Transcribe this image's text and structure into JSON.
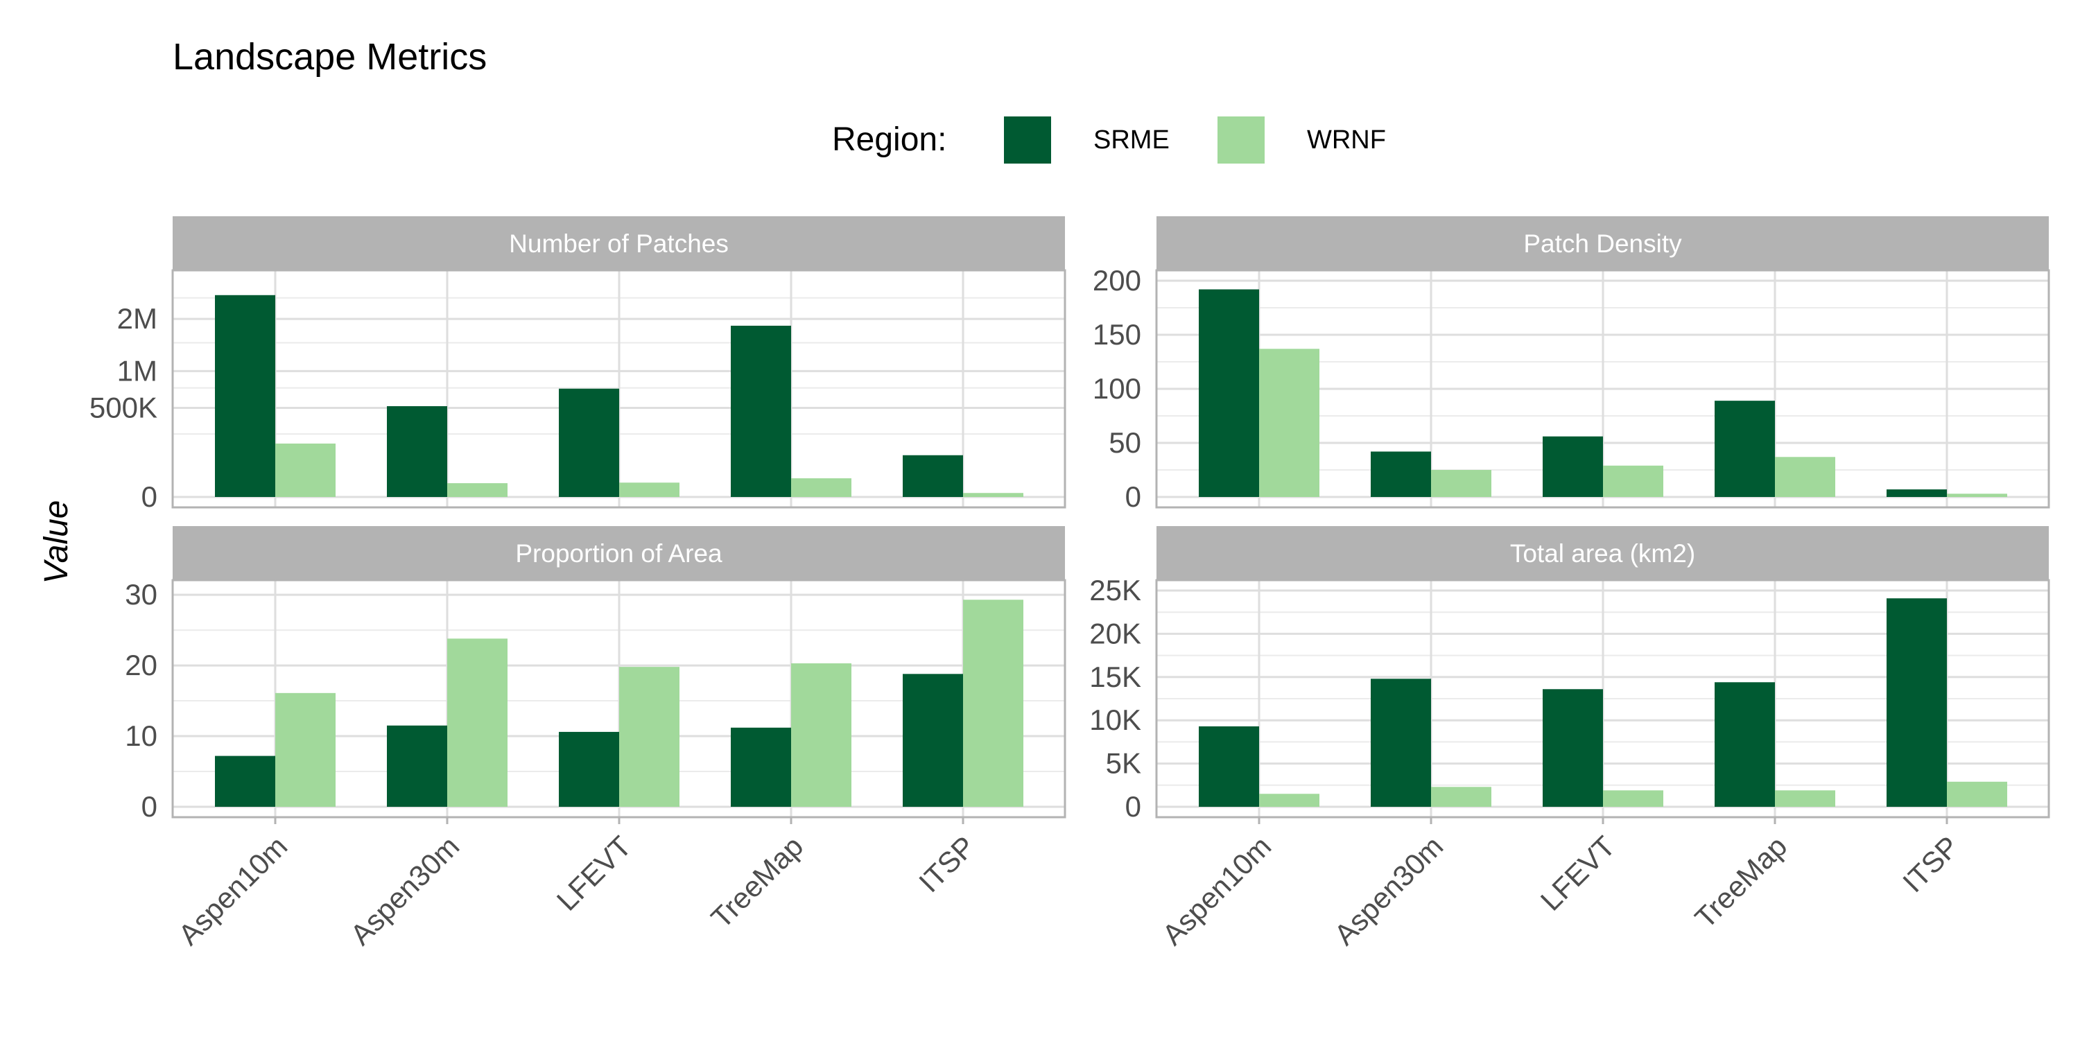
{
  "chart_data": {
    "type": "bar",
    "title": "Landscape Metrics",
    "ylabel": "Value",
    "xlabel": "",
    "legend": {
      "title": "Region:",
      "position": "top",
      "entries": [
        {
          "name": "SRME",
          "color": "#005a32"
        },
        {
          "name": "WRNF",
          "color": "#a1d99b"
        }
      ]
    },
    "grid": true,
    "categories": [
      "Aspen10m",
      "Aspen30m",
      "LFEVT",
      "TreeMap",
      "ITSP"
    ],
    "panels": [
      {
        "title": "Number of Patches",
        "yscale": "sqrt",
        "ylim": [
          0,
          2950000
        ],
        "yticks": [
          0,
          500000,
          1000000,
          2000000
        ],
        "yticklabels": [
          "0",
          "500K",
          "1M",
          "2M"
        ],
        "minor_ticks": [
          250000,
          750000,
          1500000,
          2500000
        ],
        "series": [
          {
            "name": "SRME",
            "values": [
              2570000,
              520000,
              740000,
              1850000,
              110000
            ]
          },
          {
            "name": "WRNF",
            "values": [
              180000,
              12000,
              13000,
              22000,
              1000
            ]
          }
        ]
      },
      {
        "title": "Patch Density",
        "yscale": "linear",
        "ylim": [
          0,
          200
        ],
        "yticks": [
          0,
          50,
          100,
          150,
          200
        ],
        "yticklabels": [
          "0",
          "50",
          "100",
          "150",
          "200"
        ],
        "minor_ticks": [
          25,
          75,
          125,
          175
        ],
        "series": [
          {
            "name": "SRME",
            "values": [
              192,
              42,
              56,
              89,
              7
            ]
          },
          {
            "name": "WRNF",
            "values": [
              137,
              25,
              29,
              37,
              3
            ]
          }
        ]
      },
      {
        "title": "Proportion of Area",
        "yscale": "linear",
        "ylim": [
          0,
          30.6
        ],
        "yticks": [
          0,
          10,
          20,
          30
        ],
        "yticklabels": [
          "0",
          "10",
          "20",
          "30"
        ],
        "minor_ticks": [
          5,
          15,
          25
        ],
        "series": [
          {
            "name": "SRME",
            "values": [
              7.2,
              11.5,
              10.6,
              11.2,
              18.8
            ]
          },
          {
            "name": "WRNF",
            "values": [
              16.1,
              23.8,
              19.8,
              20.3,
              29.3
            ]
          }
        ]
      },
      {
        "title": "Total area (km2)",
        "yscale": "linear",
        "ylim": [
          0,
          25000
        ],
        "yticks": [
          0,
          5000,
          10000,
          15000,
          20000,
          25000
        ],
        "yticklabels": [
          "0",
          "5K",
          "10K",
          "15K",
          "20K",
          "25K"
        ],
        "minor_ticks": [
          2500,
          7500,
          12500,
          17500,
          22500
        ],
        "series": [
          {
            "name": "SRME",
            "values": [
              9300,
              14800,
              13600,
              14400,
              24100
            ]
          },
          {
            "name": "WRNF",
            "values": [
              1500,
              2300,
              1900,
              1900,
              2900
            ]
          }
        ]
      }
    ]
  }
}
